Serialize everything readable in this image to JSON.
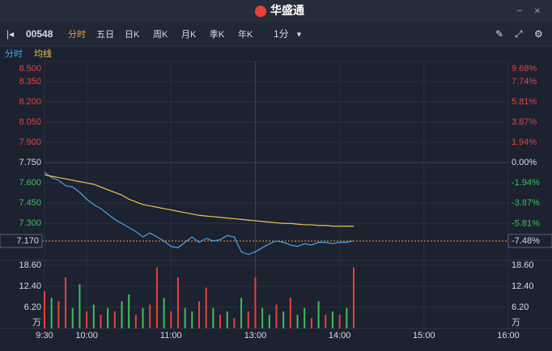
{
  "header": {
    "logo": "华盛通"
  },
  "toolbar": {
    "code": "00548",
    "tabs": [
      "分时",
      "五日",
      "日K",
      "周K",
      "月K",
      "季K",
      "年K"
    ],
    "active_tab": 0,
    "interval": "1分"
  },
  "chart_data": [
    {
      "type": "line",
      "x": [
        0,
        5,
        10,
        15,
        20,
        25,
        30,
        35,
        40,
        45,
        50,
        55,
        60,
        65,
        70,
        75,
        80,
        85,
        90,
        95,
        100,
        105,
        110,
        115,
        120,
        125,
        130,
        135,
        140,
        145,
        150,
        155,
        160,
        165,
        170,
        175,
        180,
        185,
        190,
        195,
        200,
        205,
        210,
        215,
        220
      ],
      "series": [
        {
          "name": "分时",
          "color": "#4aa3e8",
          "values": [
            7.68,
            7.64,
            7.62,
            7.58,
            7.57,
            7.53,
            7.48,
            7.44,
            7.41,
            7.37,
            7.33,
            7.3,
            7.27,
            7.24,
            7.2,
            7.23,
            7.2,
            7.17,
            7.13,
            7.12,
            7.16,
            7.2,
            7.16,
            7.19,
            7.17,
            7.18,
            7.21,
            7.2,
            7.09,
            7.07,
            7.09,
            7.12,
            7.15,
            7.17,
            7.16,
            7.14,
            7.13,
            7.15,
            7.14,
            7.16,
            7.16,
            7.15,
            7.16,
            7.16,
            7.17
          ]
        },
        {
          "name": "均线",
          "color": "#f2c14e",
          "values": [
            7.66,
            7.65,
            7.64,
            7.63,
            7.62,
            7.61,
            7.6,
            7.59,
            7.57,
            7.55,
            7.53,
            7.51,
            7.48,
            7.46,
            7.44,
            7.43,
            7.42,
            7.41,
            7.4,
            7.39,
            7.38,
            7.37,
            7.36,
            7.355,
            7.35,
            7.345,
            7.34,
            7.335,
            7.33,
            7.325,
            7.32,
            7.315,
            7.31,
            7.305,
            7.3,
            7.3,
            7.295,
            7.29,
            7.29,
            7.285,
            7.285,
            7.28,
            7.28,
            7.28,
            7.28
          ]
        }
      ],
      "xlim": [
        0,
        330
      ],
      "xticks": [
        {
          "value": 0,
          "label": "9:30"
        },
        {
          "value": 30,
          "label": "10:00"
        },
        {
          "value": 90,
          "label": "11:00"
        },
        {
          "value": 150,
          "label": "13:00"
        },
        {
          "value": 210,
          "label": "14:00"
        },
        {
          "value": 270,
          "label": "15:00"
        },
        {
          "value": 330,
          "label": "16:00"
        }
      ],
      "ylim": [
        7.05,
        8.5
      ],
      "yticks": [
        {
          "value": 8.5,
          "label": "8.500"
        },
        {
          "value": 8.35,
          "label": "8.350"
        },
        {
          "value": 8.2,
          "label": "8.200"
        },
        {
          "value": 8.05,
          "label": "8.050"
        },
        {
          "value": 7.9,
          "label": "7.900"
        },
        {
          "value": 7.75,
          "label": "7.750"
        },
        {
          "value": 7.6,
          "label": "7.600"
        },
        {
          "value": 7.45,
          "label": "7.450"
        },
        {
          "value": 7.3,
          "label": "7.300"
        }
      ],
      "y2lim": [
        -9.03,
        9.68
      ],
      "y2ticks": [
        {
          "value": 9.68,
          "label": "9.68%"
        },
        {
          "value": 7.74,
          "label": "7.74%"
        },
        {
          "value": 5.81,
          "label": "5.81%"
        },
        {
          "value": 3.87,
          "label": "3.87%"
        },
        {
          "value": 1.94,
          "label": "1.94%"
        },
        {
          "value": 0,
          "label": "0.00%"
        },
        {
          "value": -1.94,
          "label": "-1.94%"
        },
        {
          "value": -3.87,
          "label": "-3.87%"
        },
        {
          "value": -5.81,
          "label": "-5.81%"
        }
      ],
      "prev_close": 7.75,
      "last_price": {
        "value": 7.17,
        "label": "7.170"
      },
      "last_change": {
        "value": -7.48,
        "label": "-7.48%"
      }
    },
    {
      "type": "bar",
      "x": [
        0,
        5,
        10,
        15,
        20,
        25,
        30,
        35,
        40,
        45,
        50,
        55,
        60,
        65,
        70,
        75,
        80,
        85,
        90,
        95,
        100,
        105,
        110,
        115,
        120,
        125,
        130,
        135,
        140,
        145,
        150,
        155,
        160,
        165,
        170,
        175,
        180,
        185,
        190,
        195,
        200,
        205,
        210,
        215,
        220
      ],
      "values": [
        11,
        9,
        8,
        15,
        6,
        13,
        5,
        7,
        4,
        6,
        5,
        8,
        10,
        4,
        6,
        7,
        18,
        9,
        5,
        15,
        6,
        5,
        8,
        12,
        6,
        4,
        5,
        3,
        9,
        5,
        15,
        6,
        4,
        7,
        5,
        9,
        4,
        6,
        3,
        8,
        4,
        5,
        4,
        6,
        18
      ],
      "colors": [
        "#e8413c",
        "#3fbf5a",
        "#e8413c",
        "#e8413c",
        "#3fbf5a",
        "#3fbf5a",
        "#e8413c",
        "#3fbf5a",
        "#e8413c",
        "#3fbf5a",
        "#e8413c",
        "#3fbf5a",
        "#3fbf5a",
        "#e8413c",
        "#3fbf5a",
        "#e8413c",
        "#e8413c",
        "#3fbf5a",
        "#e8413c",
        "#e8413c",
        "#3fbf5a",
        "#3fbf5a",
        "#e8413c",
        "#e8413c",
        "#3fbf5a",
        "#e8413c",
        "#3fbf5a",
        "#e8413c",
        "#3fbf5a",
        "#e8413c",
        "#e8413c",
        "#3fbf5a",
        "#3fbf5a",
        "#e8413c",
        "#3fbf5a",
        "#e8413c",
        "#3fbf5a",
        "#3fbf5a",
        "#e8413c",
        "#3fbf5a",
        "#e8413c",
        "#3fbf5a",
        "#e8413c",
        "#3fbf5a",
        "#e8413c"
      ],
      "xlim": [
        0,
        330
      ],
      "ylim": [
        0,
        18.6
      ],
      "yticks": [
        {
          "value": 18.6,
          "label": "18.60"
        },
        {
          "value": 12.4,
          "label": "12.40"
        },
        {
          "value": 6.2,
          "label": "6.20"
        }
      ],
      "unit": "万"
    }
  ]
}
